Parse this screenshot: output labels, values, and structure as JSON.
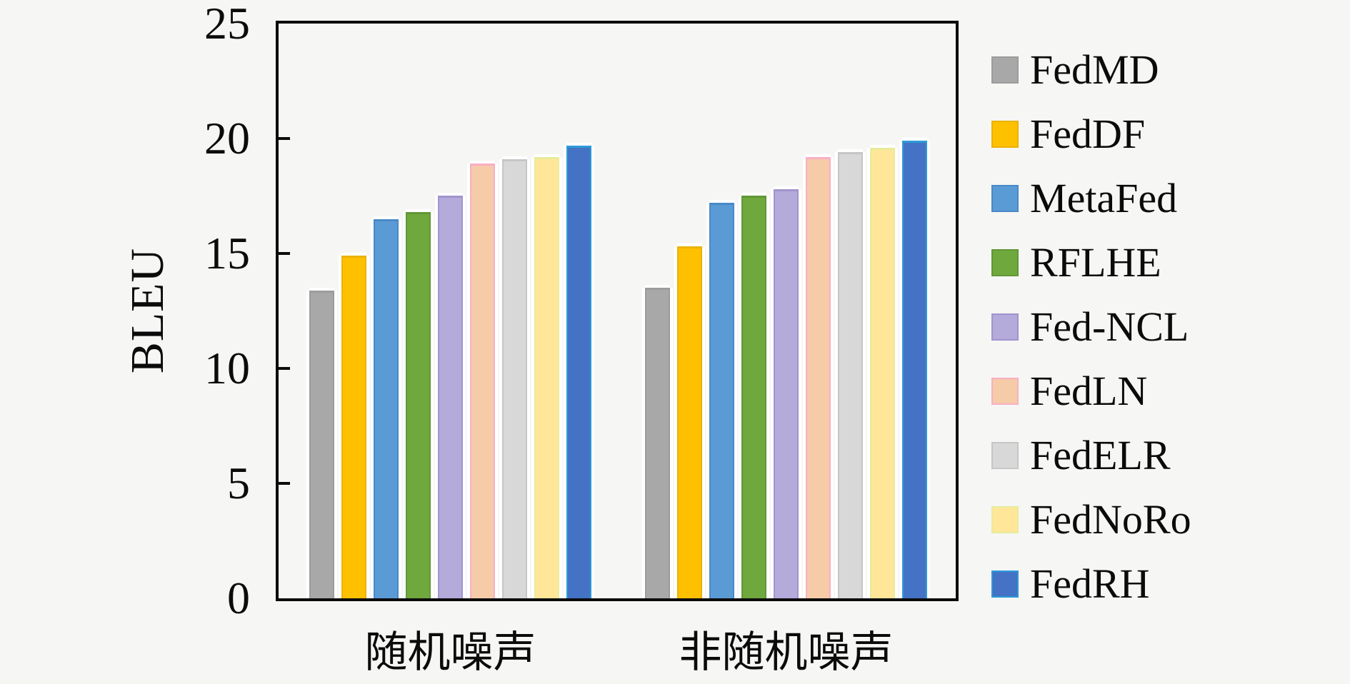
{
  "figure": {
    "background_color": "#f6f6f4",
    "axis_color": "#0b0b0b"
  },
  "chart_data": {
    "type": "bar",
    "title": "",
    "xlabel": "",
    "ylabel": "BLEU",
    "ylim": [
      0,
      25
    ],
    "yticks": [
      0,
      5,
      10,
      15,
      20,
      25
    ],
    "grid": false,
    "legend_position": "right-outside",
    "categories": [
      "随机噪声",
      "非随机噪声"
    ],
    "series": [
      {
        "name": "FedMD",
        "color": "#a8a8a8",
        "edge": "#9c9c9c",
        "values": [
          13.4,
          13.5
        ]
      },
      {
        "name": "FedDF",
        "color": "#ffc000",
        "edge": "#eab200",
        "values": [
          14.9,
          15.3
        ]
      },
      {
        "name": "MetaFed",
        "color": "#5b9bd5",
        "edge": "#4a89c8",
        "values": [
          16.5,
          17.2
        ]
      },
      {
        "name": "RFLHE",
        "color": "#6fa83d",
        "edge": "#619738",
        "values": [
          16.8,
          17.5
        ]
      },
      {
        "name": "Fed-NCL",
        "color": "#b5abdb",
        "edge": "#a294ce",
        "values": [
          17.5,
          17.8
        ]
      },
      {
        "name": "FedLN",
        "color": "#f5cba8",
        "edge": "#f9aec5",
        "values": [
          18.9,
          19.2
        ]
      },
      {
        "name": "FedELR",
        "color": "#d8d8d8",
        "edge": "#c6c6c6",
        "values": [
          19.1,
          19.4
        ]
      },
      {
        "name": "FedNoRo",
        "color": "#ffe699",
        "edge": "#e7ec9a",
        "values": [
          19.2,
          19.6
        ]
      },
      {
        "name": "FedRH",
        "color": "#4472c4",
        "edge": "#2e9ad8",
        "values": [
          19.7,
          19.9
        ]
      }
    ]
  }
}
